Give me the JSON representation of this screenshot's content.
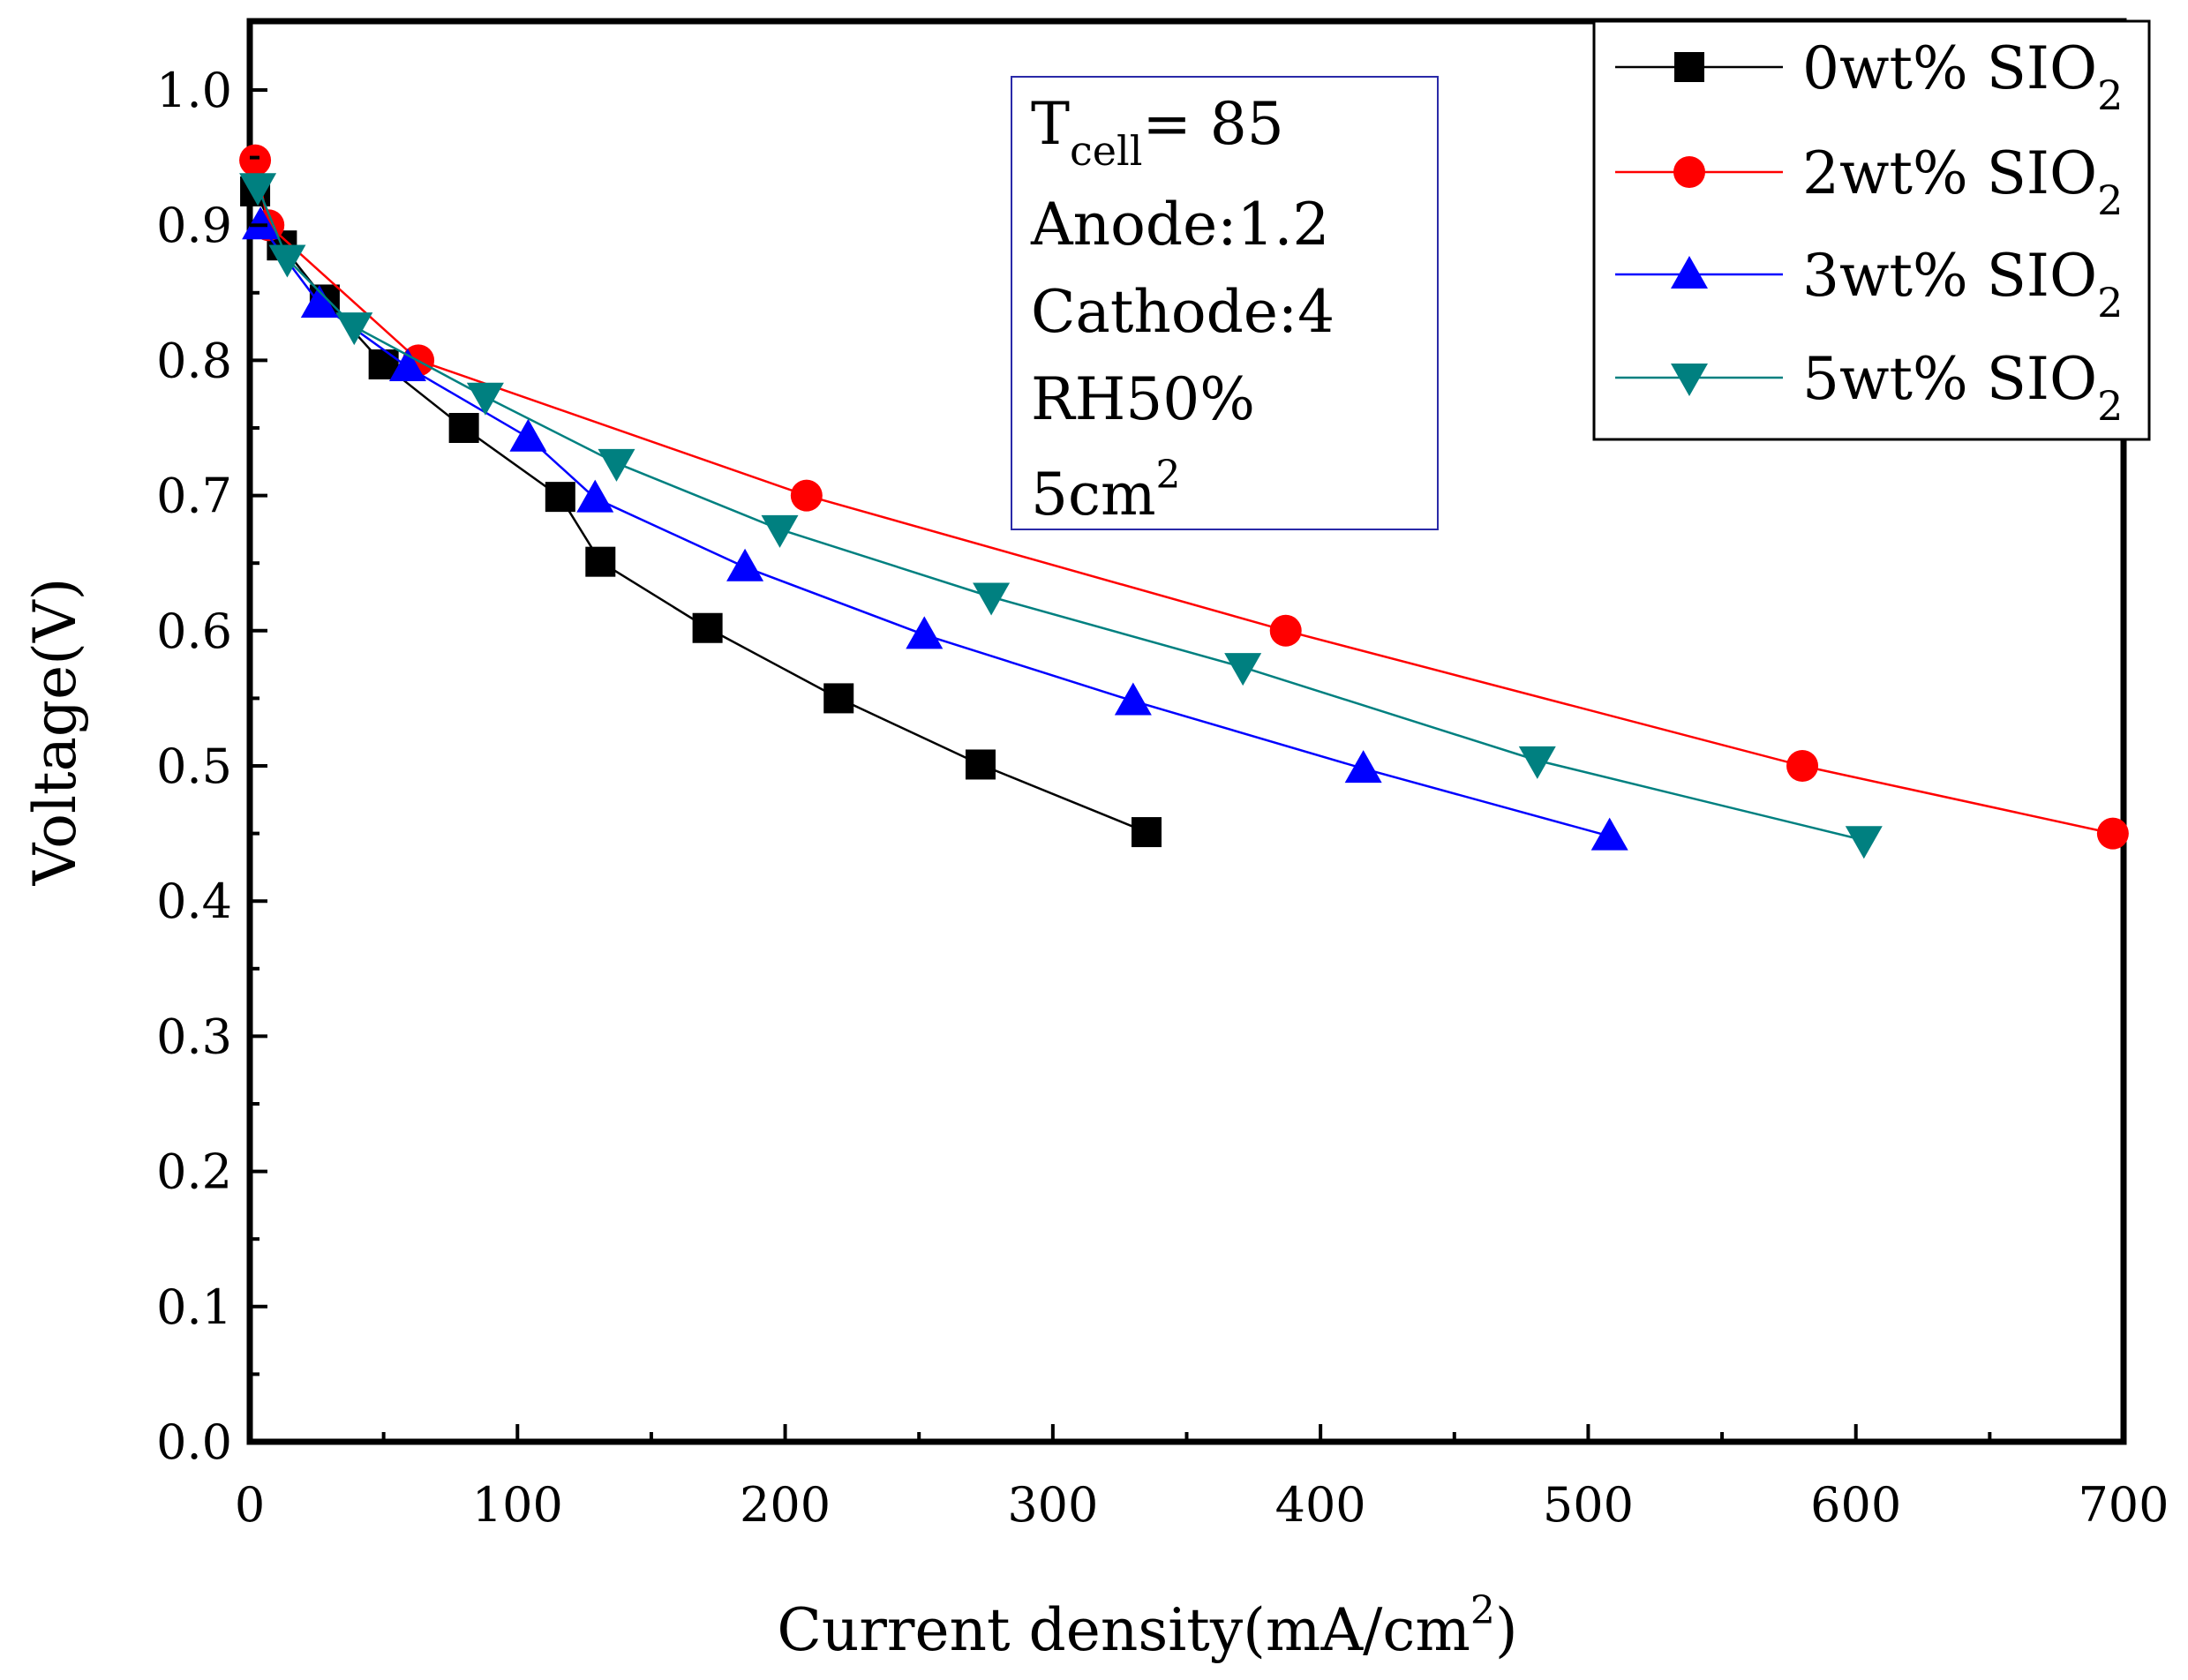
{
  "chart_data": {
    "type": "line",
    "title": "",
    "xlabel": "Current density(mA/cm",
    "xlabel_sup": "2",
    "xlabel_end": ")",
    "ylabel": "Voltage(V)",
    "xlim": [
      0,
      700
    ],
    "ylim": [
      0.0,
      1.05
    ],
    "xticks": [
      0,
      100,
      200,
      300,
      400,
      500,
      600,
      700
    ],
    "xtick_labels": [
      "0",
      "100",
      "200",
      "300",
      "400",
      "500",
      "600",
      "700"
    ],
    "yticks": [
      0.0,
      0.1,
      0.2,
      0.3,
      0.4,
      0.5,
      0.6,
      0.7,
      0.8,
      0.9,
      1.0
    ],
    "ytick_labels": [
      "0.0",
      "0.1",
      "0.2",
      "0.3",
      "0.4",
      "0.5",
      "0.6",
      "0.7",
      "0.8",
      "0.9",
      "1.0"
    ],
    "grid": false,
    "legend_position": "top-right",
    "annotation": {
      "line1_main": "T",
      "line1_sub": "cell",
      "line1_end": "= 85",
      "line2": "Anode:1.2",
      "line3": "Cathode:4",
      "line4": "RH50%",
      "line5_main": "5cm",
      "line5_sup": "2"
    },
    "series": [
      {
        "name": "0wt% SIO",
        "name_sub": "2",
        "marker": "square",
        "color": "#000000",
        "x": [
          2,
          12,
          28,
          50,
          80,
          116,
          131,
          171,
          220,
          273,
          335
        ],
        "y": [
          0.925,
          0.885,
          0.845,
          0.797,
          0.75,
          0.699,
          0.651,
          0.602,
          0.55,
          0.501,
          0.451
        ]
      },
      {
        "name": "2wt% SIO",
        "name_sub": "2",
        "marker": "circle",
        "color": "#ff0000",
        "x": [
          2,
          7,
          63,
          208,
          387,
          580,
          696
        ],
        "y": [
          0.948,
          0.9,
          0.8,
          0.7,
          0.6,
          0.5,
          0.45
        ]
      },
      {
        "name": "3wt% SIO",
        "name_sub": "2",
        "marker": "triangle-up",
        "color": "#0000ff",
        "x": [
          4,
          26,
          59,
          104,
          129,
          185,
          252,
          330,
          416,
          508
        ],
        "y": [
          0.9,
          0.842,
          0.795,
          0.743,
          0.698,
          0.647,
          0.597,
          0.548,
          0.498,
          0.448
        ]
      },
      {
        "name": "5wt% SIO",
        "name_sub": "2",
        "marker": "triangle-down",
        "color": "#008080",
        "x": [
          3,
          14,
          39,
          88,
          137,
          198,
          277,
          371,
          481,
          603
        ],
        "y": [
          0.928,
          0.875,
          0.825,
          0.773,
          0.724,
          0.675,
          0.625,
          0.573,
          0.504,
          0.445
        ]
      }
    ]
  }
}
